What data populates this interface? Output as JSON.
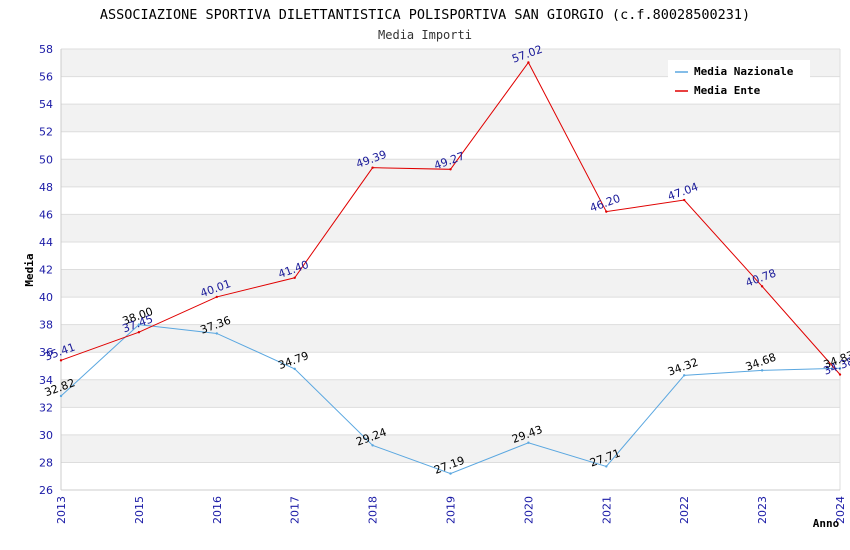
{
  "chart_data": {
    "type": "line",
    "title": "ASSOCIAZIONE SPORTIVA DILETTANTISTICA POLISPORTIVA SAN GIORGIO (c.f.80028500231)",
    "subtitle": "Media Importi",
    "xlabel": "Anno",
    "ylabel": "Media",
    "ylim": [
      26,
      58
    ],
    "ytick_step": 2,
    "grid": true,
    "legend_position": "top-right",
    "categories": [
      "2013",
      "2015",
      "2016",
      "2017",
      "2018",
      "2019",
      "2020",
      "2021",
      "2022",
      "2023",
      "2024"
    ],
    "series": [
      {
        "name": "Media Nazionale",
        "color": "#5aa7e0",
        "values": [
          32.82,
          38.0,
          37.36,
          34.79,
          29.24,
          27.19,
          29.43,
          27.71,
          34.32,
          34.68,
          34.83
        ],
        "labels": [
          "32.82",
          "38.00",
          "37.36",
          "34.79",
          "29.24",
          "27.19",
          "29.43",
          "27.71",
          "34.32",
          "34.68",
          "34.83"
        ]
      },
      {
        "name": "Media Ente",
        "color": "#e00000",
        "values": [
          35.41,
          37.45,
          40.01,
          41.4,
          49.39,
          49.27,
          57.02,
          46.2,
          47.04,
          40.78,
          34.38
        ],
        "labels": [
          "35.41",
          "37.45",
          "40.01",
          "41.40",
          "49.39",
          "49.27",
          "57.02",
          "46.20",
          "47.04",
          "40.78",
          "34.38"
        ]
      }
    ]
  }
}
